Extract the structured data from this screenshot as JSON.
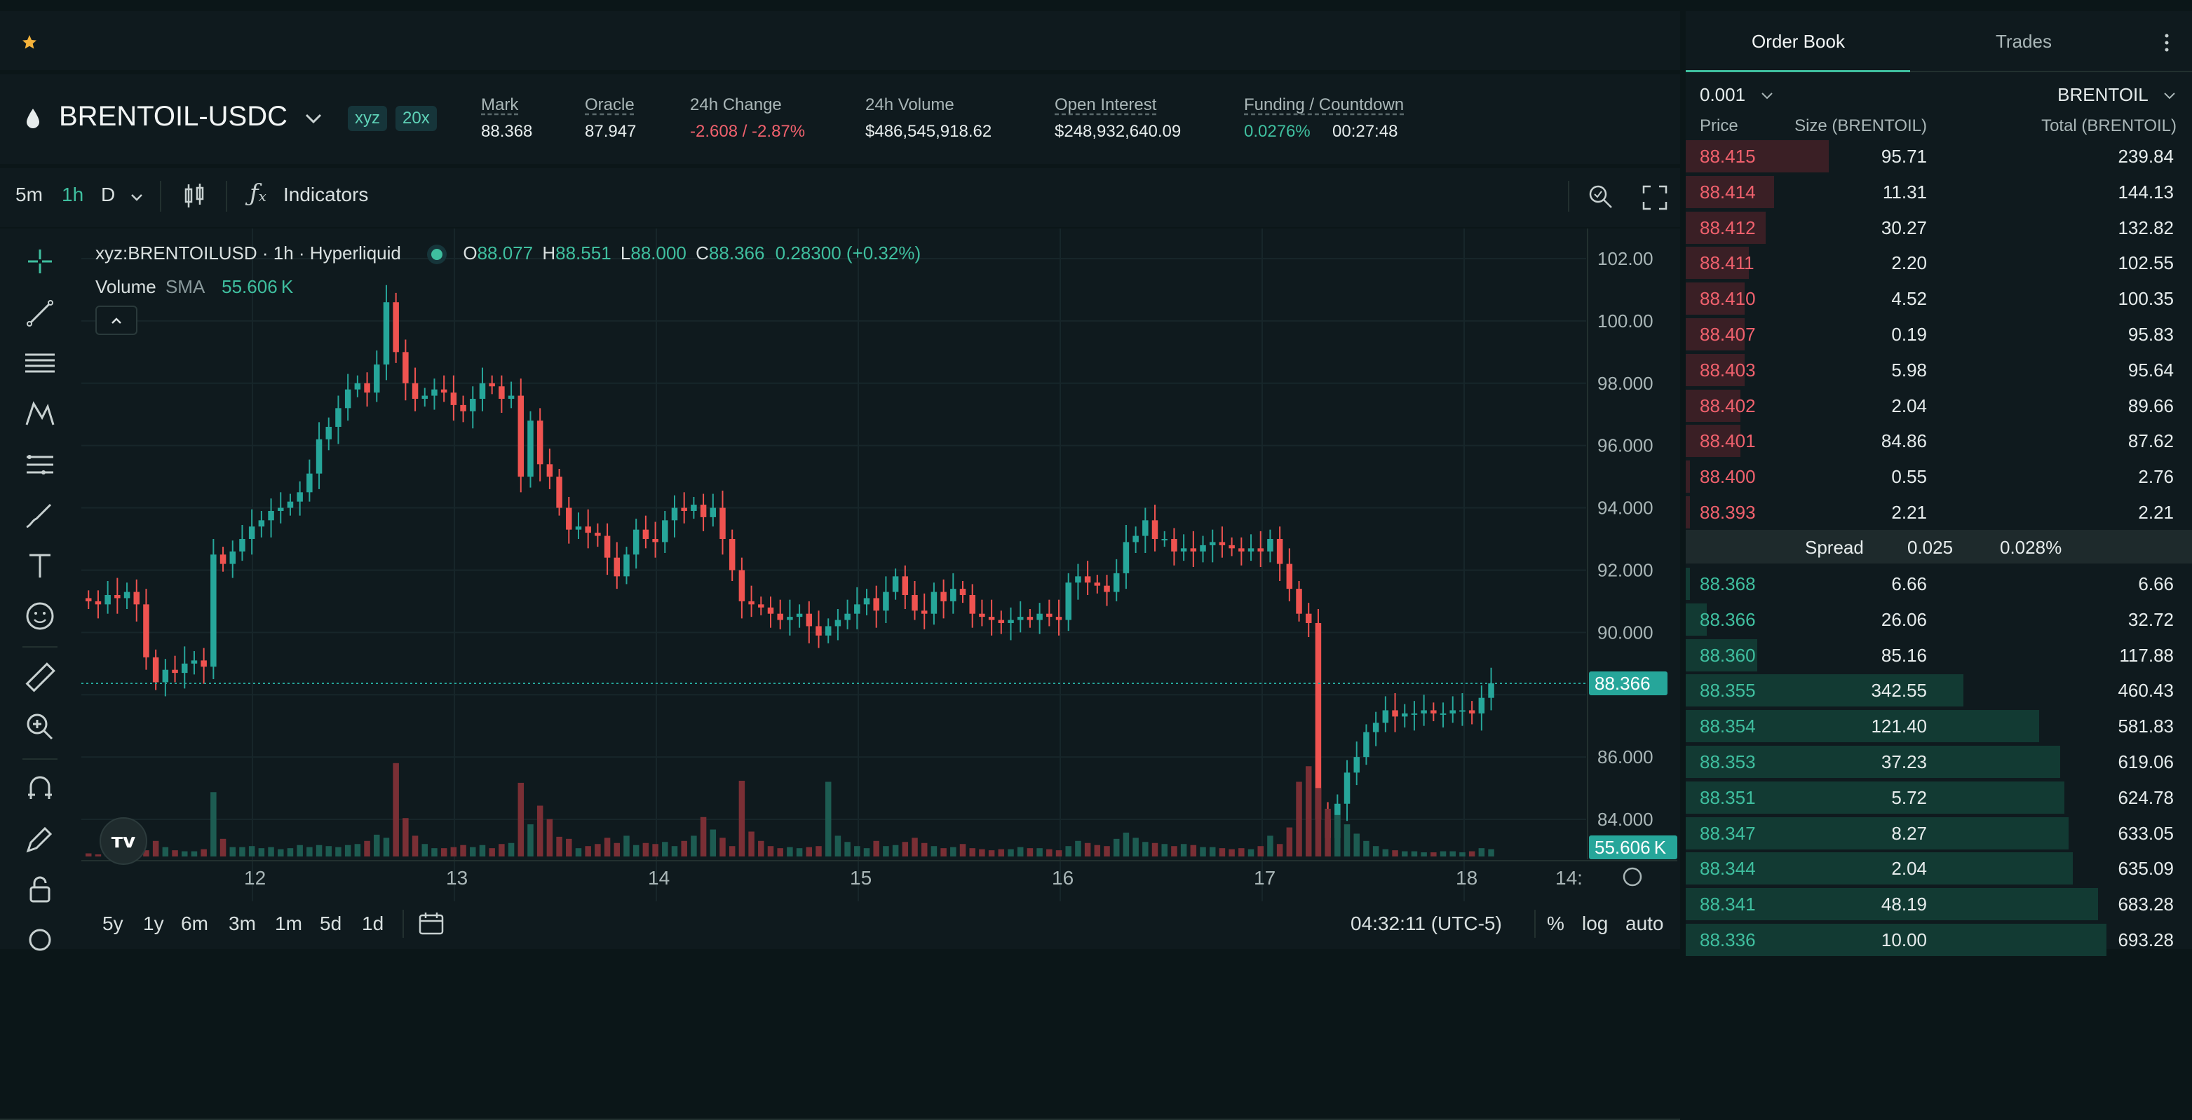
{
  "header": {
    "symbol": "BRENTOIL-USDC",
    "badge_exchange": "xyz",
    "badge_leverage": "20x",
    "stats": [
      {
        "label": "Mark",
        "value": "88.368"
      },
      {
        "label": "Oracle",
        "value": "87.947"
      },
      {
        "label": "24h Change",
        "value": "-2.608 / -2.87%"
      },
      {
        "label": "24h Volume",
        "value": "$486,545,918.62"
      },
      {
        "label": "Open Interest",
        "value": "$248,932,640.09"
      },
      {
        "label": "Funding / Countdown",
        "value": "0.0276%",
        "value2": "00:27:48"
      }
    ]
  },
  "toolbar": {
    "intervals": [
      "5m",
      "1h",
      "D"
    ],
    "active_interval": "1h",
    "indicators_label": "Indicators"
  },
  "legend": {
    "symbol": "xyz:BRENTOILUSD · 1h · Hyperliquid",
    "o_label": "O",
    "o": "88.077",
    "h_label": "H",
    "h": "88.551",
    "l_label": "L",
    "l": "88.000",
    "c_label": "C",
    "c": "88.366",
    "change": "0.28300 (+0.32%)",
    "volume_label": "Volume",
    "sma_label": "SMA",
    "sma_value": "55.606 K"
  },
  "chart_data": {
    "type": "candlestick",
    "y_ticks": [
      "102.00",
      "100.00",
      "98.000",
      "96.000",
      "94.000",
      "92.000",
      "90.000",
      "86.000",
      "84.000"
    ],
    "x_ticks": [
      "12",
      "13",
      "14",
      "15",
      "16",
      "17",
      "18",
      "14:"
    ],
    "ylim": [
      83,
      103
    ],
    "last_price_label": "88.366",
    "volume_sma_label": "55.606 K",
    "closes": [
      91.0,
      90.9,
      91.2,
      91.1,
      91.3,
      90.9,
      89.2,
      88.4,
      88.8,
      88.7,
      89.0,
      89.1,
      88.9,
      92.5,
      92.2,
      92.6,
      93.0,
      93.4,
      93.6,
      93.9,
      94.0,
      94.2,
      94.5,
      95.1,
      96.2,
      96.6,
      97.2,
      97.8,
      98.0,
      97.7,
      98.6,
      100.6,
      99.0,
      98.0,
      97.5,
      97.6,
      97.8,
      97.7,
      97.3,
      97.1,
      97.5,
      98.0,
      97.9,
      97.5,
      97.6,
      95.0,
      96.8,
      95.4,
      95.0,
      94.0,
      93.3,
      93.4,
      93.2,
      93.1,
      92.4,
      91.8,
      92.5,
      93.3,
      93.0,
      92.9,
      93.6,
      94.0,
      93.9,
      94.1,
      93.7,
      94.0,
      93.0,
      92.0,
      91.0,
      90.9,
      90.8,
      90.6,
      90.4,
      90.5,
      90.6,
      90.2,
      89.9,
      90.2,
      90.4,
      90.6,
      90.9,
      91.1,
      90.7,
      91.3,
      91.8,
      91.2,
      90.7,
      90.6,
      91.3,
      91.0,
      91.4,
      91.2,
      90.6,
      90.5,
      90.4,
      90.3,
      90.4,
      90.5,
      90.4,
      90.6,
      90.5,
      90.4,
      91.6,
      91.8,
      91.6,
      91.5,
      91.3,
      91.9,
      92.9,
      93.1,
      93.6,
      93.0,
      93.0,
      92.6,
      92.7,
      92.6,
      92.8,
      92.9,
      92.8,
      92.7,
      92.6,
      92.7,
      92.6,
      93.0,
      92.2,
      91.4,
      90.6,
      90.3,
      84.0,
      83.4,
      84.5,
      85.5,
      86.0,
      86.8,
      87.1,
      87.5,
      87.3,
      87.4,
      87.4,
      87.5,
      87.4,
      87.4,
      87.5,
      87.5,
      87.4,
      87.9,
      88.366
    ],
    "volume_peaks_note": "relative heights",
    "volumes": [
      0.03,
      0.02,
      0.05,
      0.04,
      0.04,
      0.05,
      0.06,
      0.15,
      0.09,
      0.06,
      0.05,
      0.05,
      0.07,
      0.62,
      0.17,
      0.09,
      0.09,
      0.1,
      0.08,
      0.09,
      0.07,
      0.08,
      0.11,
      0.09,
      0.11,
      0.1,
      0.09,
      0.11,
      0.12,
      0.15,
      0.21,
      0.18,
      0.9,
      0.37,
      0.2,
      0.12,
      0.08,
      0.08,
      0.09,
      0.11,
      0.09,
      0.11,
      0.08,
      0.12,
      0.13,
      0.71,
      0.31,
      0.49,
      0.36,
      0.19,
      0.17,
      0.08,
      0.1,
      0.12,
      0.18,
      0.13,
      0.2,
      0.11,
      0.13,
      0.12,
      0.14,
      0.1,
      0.15,
      0.2,
      0.38,
      0.26,
      0.18,
      0.1,
      0.73,
      0.24,
      0.15,
      0.1,
      0.08,
      0.09,
      0.08,
      0.09,
      0.1,
      0.72,
      0.2,
      0.14,
      0.1,
      0.08,
      0.15,
      0.1,
      0.11,
      0.14,
      0.18,
      0.13,
      0.1,
      0.08,
      0.09,
      0.12,
      0.08,
      0.07,
      0.06,
      0.07,
      0.07,
      0.09,
      0.08,
      0.08,
      0.07,
      0.06,
      0.1,
      0.15,
      0.13,
      0.11,
      0.1,
      0.17,
      0.23,
      0.18,
      0.14,
      0.13,
      0.12,
      0.1,
      0.12,
      0.11,
      0.09,
      0.09,
      0.08,
      0.07,
      0.08,
      0.07,
      0.1,
      0.2,
      0.12,
      0.28,
      0.72,
      0.87,
      0.66,
      0.46,
      0.4,
      0.31,
      0.22,
      0.15,
      0.1,
      0.07,
      0.06,
      0.05,
      0.05,
      0.04,
      0.04,
      0.05,
      0.05,
      0.04,
      0.05,
      0.08,
      0.07
    ]
  },
  "bottombar": {
    "ranges": [
      "5y",
      "1y",
      "6m",
      "3m",
      "1m",
      "5d",
      "1d"
    ],
    "time": "04:32:11 (UTC-5)",
    "pct": "%",
    "log": "log",
    "auto": "auto"
  },
  "orderbook": {
    "tab_book": "Order Book",
    "tab_trades": "Trades",
    "tick": "0.001",
    "unit": "BRENTOIL",
    "col_price": "Price",
    "col_size": "Size (BRENTOIL)",
    "col_total": "Total (BRENTOIL)",
    "asks": [
      {
        "price": "88.415",
        "size": "95.71",
        "total": "239.84",
        "depth": 0.34
      },
      {
        "price": "88.414",
        "size": "11.31",
        "total": "144.13",
        "depth": 0.21
      },
      {
        "price": "88.412",
        "size": "30.27",
        "total": "132.82",
        "depth": 0.19
      },
      {
        "price": "88.411",
        "size": "2.20",
        "total": "102.55",
        "depth": 0.15
      },
      {
        "price": "88.410",
        "size": "4.52",
        "total": "100.35",
        "depth": 0.14
      },
      {
        "price": "88.407",
        "size": "0.19",
        "total": "95.83",
        "depth": 0.14
      },
      {
        "price": "88.403",
        "size": "5.98",
        "total": "95.64",
        "depth": 0.14
      },
      {
        "price": "88.402",
        "size": "2.04",
        "total": "89.66",
        "depth": 0.13
      },
      {
        "price": "88.401",
        "size": "84.86",
        "total": "87.62",
        "depth": 0.13
      },
      {
        "price": "88.400",
        "size": "0.55",
        "total": "2.76",
        "depth": 0.01
      },
      {
        "price": "88.393",
        "size": "2.21",
        "total": "2.21",
        "depth": 0.01
      }
    ],
    "spread_label": "Spread",
    "spread_value": "0.025",
    "spread_pct": "0.028%",
    "bids": [
      {
        "price": "88.368",
        "size": "6.66",
        "total": "6.66",
        "depth": 0.01
      },
      {
        "price": "88.366",
        "size": "26.06",
        "total": "32.72",
        "depth": 0.05
      },
      {
        "price": "88.360",
        "size": "85.16",
        "total": "117.88",
        "depth": 0.17
      },
      {
        "price": "88.355",
        "size": "342.55",
        "total": "460.43",
        "depth": 0.66
      },
      {
        "price": "88.354",
        "size": "121.40",
        "total": "581.83",
        "depth": 0.84
      },
      {
        "price": "88.353",
        "size": "37.23",
        "total": "619.06",
        "depth": 0.89
      },
      {
        "price": "88.351",
        "size": "5.72",
        "total": "624.78",
        "depth": 0.9
      },
      {
        "price": "88.347",
        "size": "8.27",
        "total": "633.05",
        "depth": 0.91
      },
      {
        "price": "88.344",
        "size": "2.04",
        "total": "635.09",
        "depth": 0.92
      },
      {
        "price": "88.341",
        "size": "48.19",
        "total": "683.28",
        "depth": 0.98
      },
      {
        "price": "88.336",
        "size": "10.00",
        "total": "693.28",
        "depth": 1.0
      }
    ]
  }
}
